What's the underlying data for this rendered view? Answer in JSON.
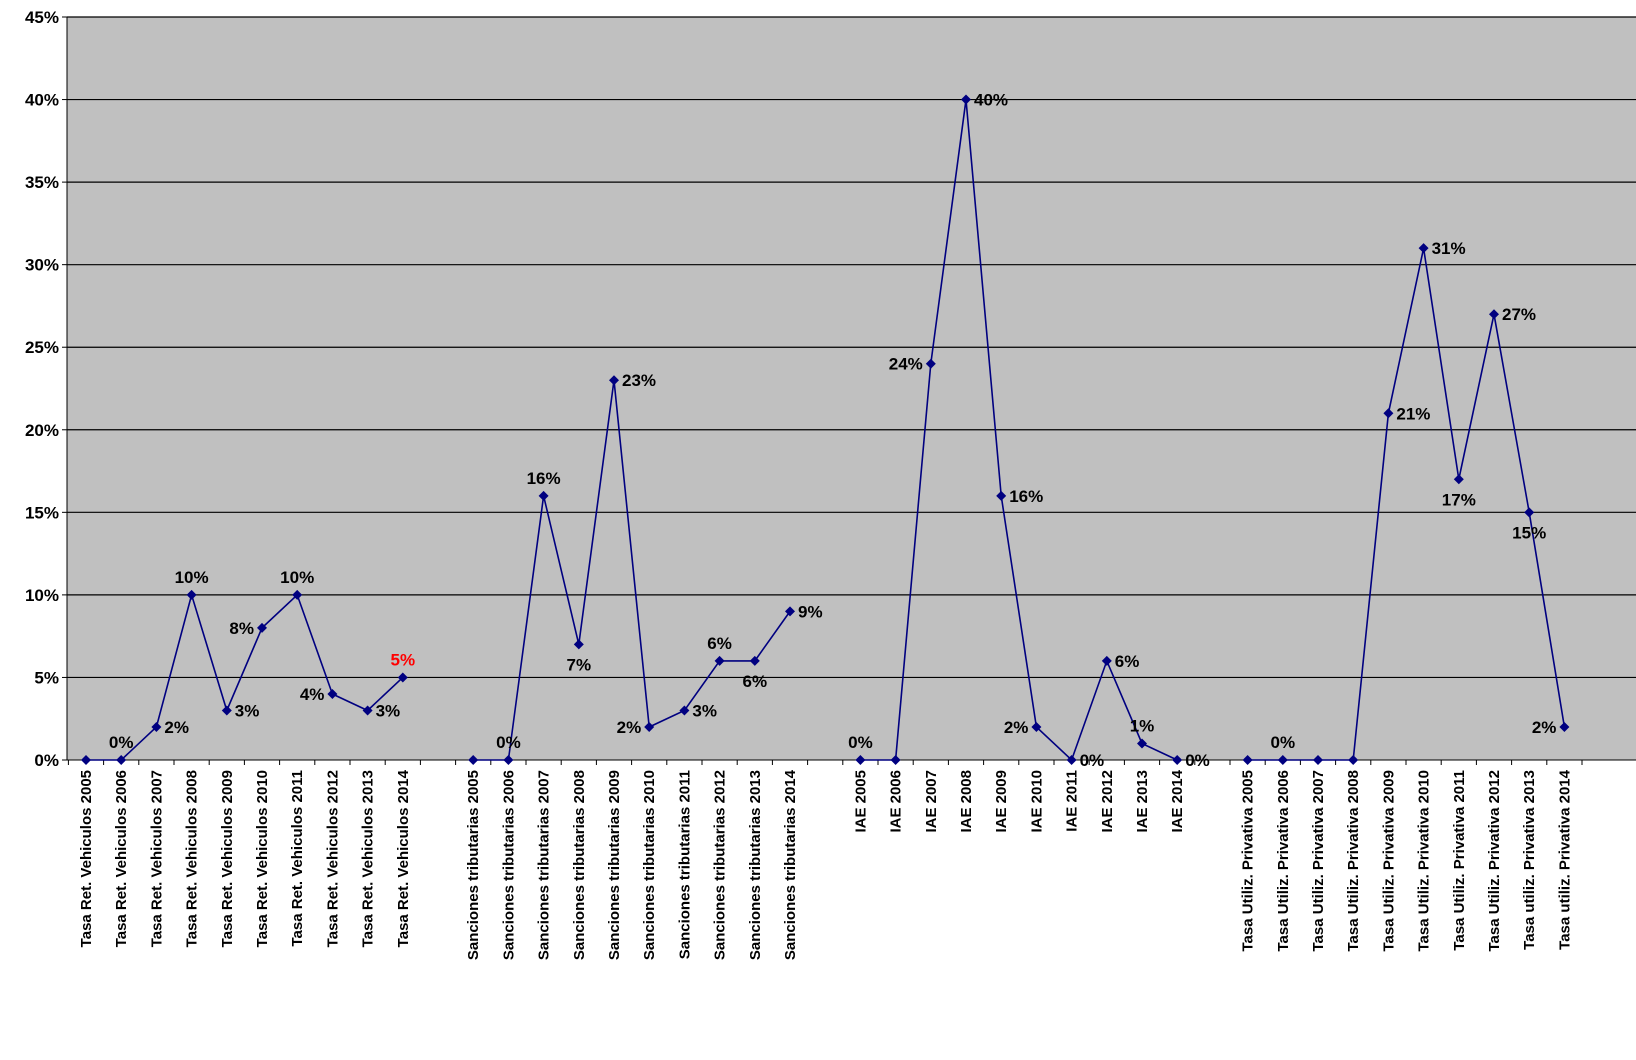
{
  "chart_data": {
    "type": "line",
    "title": "",
    "xlabel": "",
    "ylabel": "",
    "ylim": [
      0,
      45
    ],
    "y_unit": "%",
    "grid": "horizontal",
    "legend": "none",
    "colors": {
      "plot_bg": "#c0c0c0",
      "line": "#000080",
      "label_default": "#000000",
      "label_highlight": "#ff0000"
    },
    "yticks": [
      "0%",
      "5%",
      "10%",
      "15%",
      "20%",
      "25%",
      "30%",
      "35%",
      "40%",
      "45%"
    ],
    "categories": [
      "Tasa Ret. Vehiculos 2005",
      "Tasa Ret. Vehiculos 2006",
      "Tasa Ret. Vehiculos 2007",
      "Tasa Ret. Vehiculos 2008",
      "Tasa Ret. Vehiculos 2009",
      "Tasa Ret. Vehiculos 2010",
      "Tasa Ret. Vehiculos 2011",
      "Tasa Ret. Vehiculos 2012",
      "Tasa Ret. Vehiculos 2013",
      "Tasa Ret. Vehiculos 2014",
      "",
      "Sanciones tributarias 2005",
      "Sanciones tributarias 2006",
      "Sanciones tributarias 2007",
      "Sanciones tributarias 2008",
      "Sanciones tributarias 2009",
      "Sanciones tributarias 2010",
      "Sanciones tributarias 2011",
      "Sanciones tributarias 2012",
      "Sanciones tributarias 2013",
      "Sanciones tributarias 2014",
      "",
      "IAE 2005",
      "IAE 2006",
      "IAE 2007",
      "IAE 2008",
      "IAE 2009",
      "IAE 2010",
      "IAE 2011",
      "IAE 2012",
      "IAE 2013",
      "IAE 2014",
      "",
      "Tasa Utiliz. Privativa 2005",
      "Tasa Utiliz. Privativa 2006",
      "Tasa Utiliz. Privativa 2007",
      "Tasa Utiliz. Privativa 2008",
      "Tasa Utiliz. Privativa 2009",
      "Tasa Utiliz. Privativa 2010",
      "Tasa Utiliz. Privativa 2011",
      "Tasa Utiliz. Privativa 2012",
      "Tasa utiliz. Privativa 2013",
      "Tasa utiliz. Privativa 2014"
    ],
    "values": [
      0,
      0,
      2,
      10,
      3,
      8,
      10,
      4,
      3,
      5,
      null,
      0,
      0,
      16,
      7,
      23,
      2,
      3,
      6,
      6,
      9,
      null,
      0,
      0,
      24,
      40,
      16,
      2,
      0,
      6,
      1,
      0,
      null,
      0,
      0,
      0,
      0,
      21,
      31,
      17,
      27,
      15,
      2
    ],
    "data_labels": [
      "",
      "0%",
      "2%",
      "10%",
      "3%",
      "8%",
      "10%",
      "4%",
      "3%",
      "5%",
      "",
      "",
      "0%",
      "16%",
      "7%",
      "23%",
      "2%",
      "3%",
      "6%",
      "6%",
      "9%",
      "",
      "0%",
      "",
      "24%",
      "40%",
      "16%",
      "2%",
      "0%",
      "6%",
      "1%",
      "0%",
      "",
      "",
      "0%",
      "",
      "",
      "21%",
      "31%",
      "17%",
      "27%",
      "15%",
      "2%"
    ],
    "label_placement": [
      "",
      "above",
      "right",
      "above",
      "right",
      "left",
      "above",
      "left",
      "right",
      "above",
      "",
      "",
      "above",
      "above",
      "below",
      "right",
      "left",
      "right",
      "above",
      "below",
      "right",
      "",
      "above",
      "",
      "left",
      "right",
      "right",
      "left",
      "right",
      "right",
      "above",
      "right",
      "",
      "",
      "above",
      "",
      "",
      "right",
      "right",
      "below",
      "right",
      "below",
      "left"
    ],
    "highlighted_labels": [
      9,
      21,
      32,
      43
    ]
  }
}
